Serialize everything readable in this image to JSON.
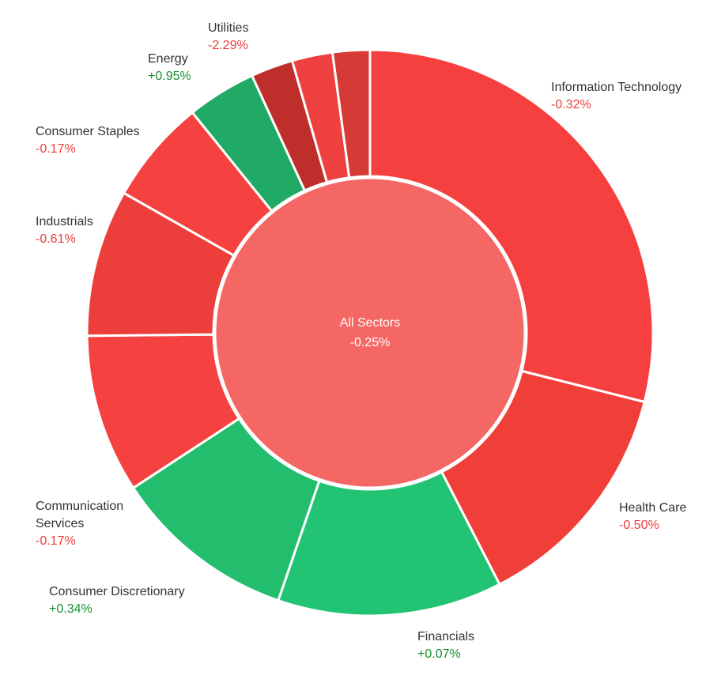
{
  "chart_data": {
    "type": "pie",
    "center": {
      "label": "All Sectors",
      "value": "-0.25%",
      "color": "#F56764"
    },
    "colors": {
      "positive_text": "#1a8f2e",
      "negative_text": "#f03c3c"
    },
    "sectors": [
      {
        "name": "Information Technology",
        "value_label": "-0.32%",
        "change": -0.32,
        "share": 30.0,
        "color": "#F5403F"
      },
      {
        "name": "Health Care",
        "value_label": "-0.50%",
        "change": -0.5,
        "share": 14.0,
        "color": "#F03F39"
      },
      {
        "name": "Financials",
        "value_label": "+0.07%",
        "change": 0.07,
        "share": 13.3,
        "color": "#22C474"
      },
      {
        "name": "Consumer Discretionary",
        "value_label": "+0.34%",
        "change": 0.34,
        "share": 10.9,
        "color": "#22BE6E"
      },
      {
        "name": "Communication Services",
        "value_label": "-0.17%",
        "change": -0.17,
        "share": 9.4,
        "color": "#F54140"
      },
      {
        "name": "Industrials",
        "value_label": "-0.61%",
        "change": -0.61,
        "share": 8.7,
        "color": "#EC3F3C"
      },
      {
        "name": "Consumer Staples",
        "value_label": "-0.17%",
        "change": -0.17,
        "share": 6.2,
        "color": "#F54140"
      },
      {
        "name": "Energy",
        "value_label": "+0.95%",
        "change": 0.95,
        "share": 4.1,
        "color": "#20AA66"
      },
      {
        "name": "Utilities",
        "value_label": "-2.29%",
        "change": -2.29,
        "share": 2.5,
        "color": "#BE2F2C"
      },
      {
        "name": "",
        "value_label": "",
        "share": 2.4,
        "color": "#EE403F"
      },
      {
        "name": "",
        "value_label": "",
        "share": 2.2,
        "color": "#D63A36"
      }
    ]
  }
}
